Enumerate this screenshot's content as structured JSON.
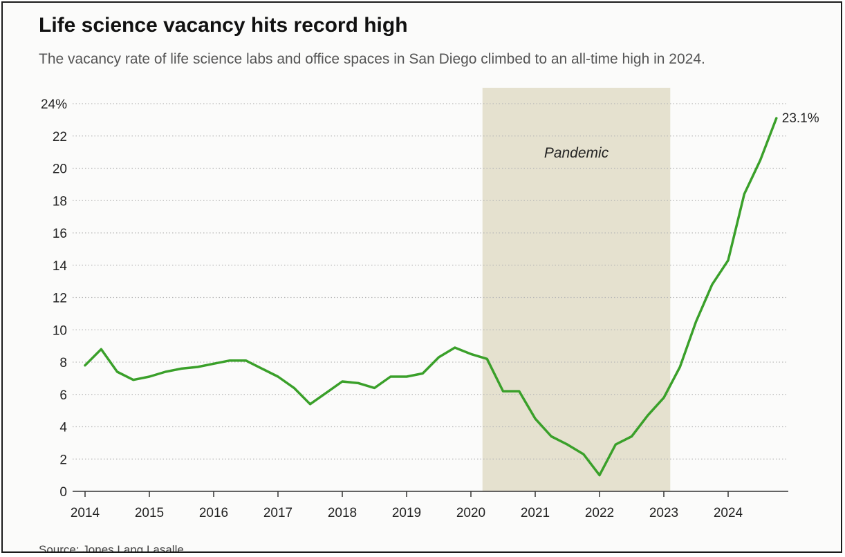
{
  "header": {
    "title": "Life science vacancy hits record high",
    "subtitle": "The vacancy rate of life science labs and office spaces in San Diego climbed to an all-time high in 2024."
  },
  "footer": {
    "source": "Source: Jones Lang Lasalle"
  },
  "colors": {
    "line": "#3aa02a",
    "pandemic_band": "#e5e1cf",
    "grid": "#b8b8b8",
    "axis": "#333333"
  },
  "chart_data": {
    "type": "line",
    "title": "Life science vacancy hits record high",
    "subtitle": "The vacancy rate of life science labs and office spaces in San Diego climbed to an all-time high in 2024.",
    "xlabel": "",
    "ylabel": "",
    "xlim": [
      2014,
      2025
    ],
    "ylim": [
      0,
      24
    ],
    "x_ticks": [
      2014,
      2015,
      2016,
      2017,
      2018,
      2019,
      2020,
      2021,
      2022,
      2023,
      2024
    ],
    "x_tick_labels": [
      "2014",
      "2015",
      "2016",
      "2017",
      "2018",
      "2019",
      "2020",
      "2021",
      "2022",
      "2023",
      "2024"
    ],
    "y_ticks": [
      0,
      2,
      4,
      6,
      8,
      10,
      12,
      14,
      16,
      18,
      20,
      22,
      24
    ],
    "y_tick_labels": [
      "0",
      "2",
      "4",
      "6",
      "8",
      "10",
      "12",
      "14",
      "16",
      "18",
      "20",
      "22",
      "24%"
    ],
    "grid": "horizontal dotted",
    "series": [
      {
        "x": [
          2014.0,
          2014.25,
          2014.5,
          2014.75,
          2015.0,
          2015.25,
          2015.5,
          2015.75,
          2016.0,
          2016.25,
          2016.5,
          2016.75,
          2017.0,
          2017.25,
          2017.5,
          2017.75,
          2018.0,
          2018.25,
          2018.5,
          2018.75,
          2019.0,
          2019.25,
          2019.5,
          2019.75,
          2020.0,
          2020.25,
          2020.5,
          2020.75,
          2021.0,
          2021.25,
          2021.5,
          2021.75,
          2022.0,
          2022.25,
          2022.5,
          2022.75,
          2023.0,
          2023.25,
          2023.5,
          2023.75,
          2024.0,
          2024.25,
          2024.5,
          2024.75
        ],
        "values": [
          7.8,
          8.8,
          7.4,
          6.9,
          7.1,
          7.4,
          7.6,
          7.7,
          7.9,
          8.1,
          8.1,
          7.6,
          7.1,
          6.4,
          5.4,
          6.1,
          6.8,
          6.7,
          6.4,
          7.1,
          7.1,
          7.3,
          8.3,
          8.9,
          8.5,
          8.2,
          6.2,
          6.2,
          4.5,
          3.4,
          2.9,
          2.3,
          1.0,
          2.9,
          3.4,
          4.7,
          5.8,
          7.7,
          10.5,
          12.8,
          14.3,
          18.4,
          20.5,
          23.1
        ]
      }
    ],
    "annotations": [
      {
        "type": "band",
        "x_start": 2020.18,
        "x_end": 2023.1,
        "label": "Pandemic"
      },
      {
        "type": "end-label",
        "label": "23.1%"
      }
    ]
  }
}
